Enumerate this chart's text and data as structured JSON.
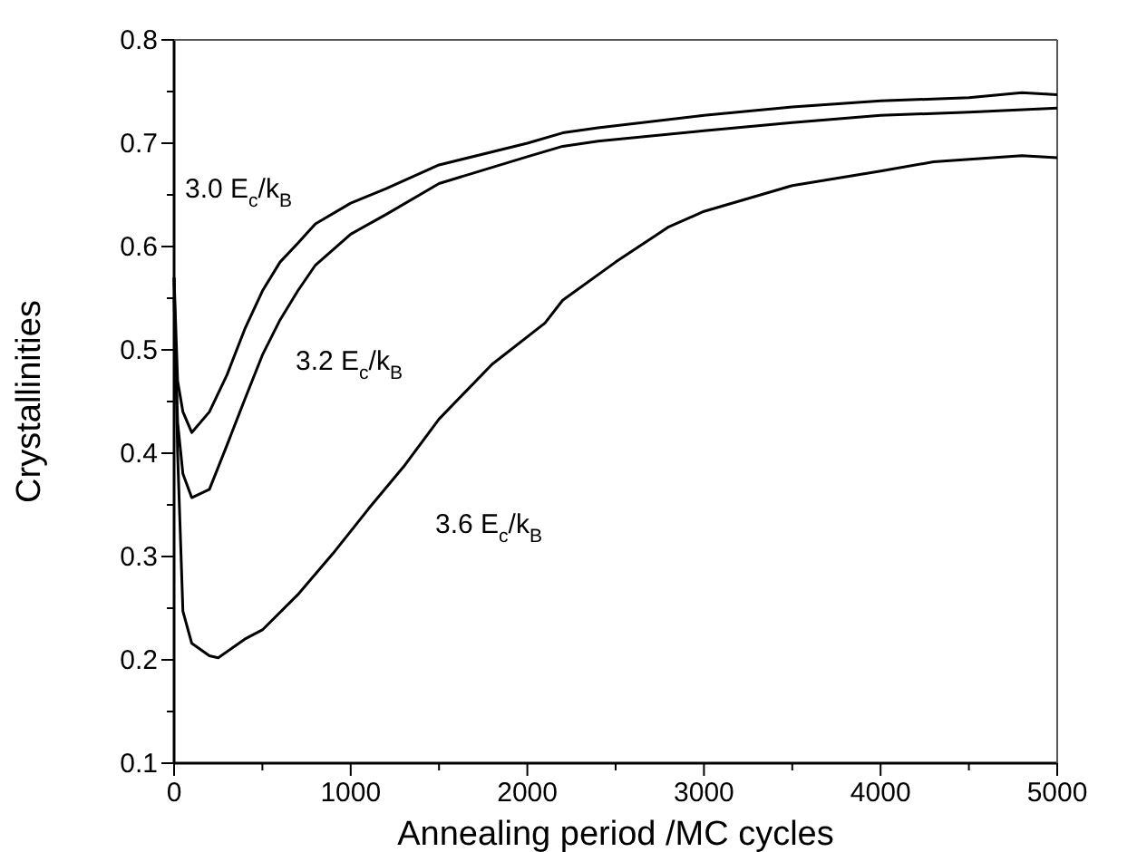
{
  "chart_data": {
    "type": "line",
    "xlabel": "Annealing period /MC cycles",
    "ylabel": "Crystallinities",
    "xlim": [
      0,
      5000
    ],
    "xticks": [
      0,
      {
        "value": 500,
        "label": null
      },
      1000,
      {
        "value": 1500,
        "label": null
      },
      2000,
      {
        "value": 2500,
        "label": null
      },
      3000,
      {
        "value": 3500,
        "label": null
      },
      4000,
      {
        "value": 4500,
        "label": null
      },
      5000
    ],
    "ylim": [
      0.1,
      0.8
    ],
    "yticks": [
      0.1,
      {
        "value": 0.15,
        "label": null
      },
      0.2,
      {
        "value": 0.25,
        "label": null
      },
      0.3,
      {
        "value": 0.35,
        "label": null
      },
      0.4,
      {
        "value": 0.45,
        "label": null
      },
      0.5,
      {
        "value": 0.55,
        "label": null
      },
      0.6,
      {
        "value": 0.65,
        "label": null
      },
      0.7,
      {
        "value": 0.75,
        "label": null
      },
      0.8
    ],
    "grid": false,
    "marker": "none",
    "line_style": "solid",
    "series": [
      {
        "color": "#000000",
        "x": [
          0,
          20,
          50,
          100,
          200,
          300,
          400,
          500,
          600,
          700,
          800,
          1000,
          1200,
          1500,
          2000,
          2200,
          2400,
          3000,
          3500,
          4000,
          4500,
          4800,
          5000
        ],
        "values": [
          0.57,
          0.47,
          0.44,
          0.42,
          0.44,
          0.476,
          0.52,
          0.557,
          0.585,
          0.603,
          0.622,
          0.642,
          0.656,
          0.679,
          0.7,
          0.71,
          0.715,
          0.727,
          0.735,
          0.741,
          0.744,
          0.749,
          0.747
        ]
      },
      {
        "color": "#000000",
        "x": [
          0,
          20,
          50,
          100,
          200,
          300,
          400,
          500,
          600,
          700,
          800,
          1000,
          1200,
          1500,
          2000,
          2200,
          2400,
          3000,
          3500,
          4000,
          4500,
          5000
        ],
        "values": [
          0.55,
          0.43,
          0.38,
          0.357,
          0.365,
          0.408,
          0.452,
          0.495,
          0.529,
          0.557,
          0.582,
          0.612,
          0.631,
          0.661,
          0.687,
          0.697,
          0.702,
          0.712,
          0.72,
          0.727,
          0.73,
          0.734
        ]
      },
      {
        "color": "#000000",
        "x": [
          0,
          20,
          50,
          100,
          200,
          250,
          400,
          500,
          700,
          900,
          1100,
          1300,
          1500,
          1800,
          2100,
          2200,
          2500,
          2800,
          3000,
          3500,
          4000,
          4300,
          4800,
          5000
        ],
        "values": [
          0.57,
          0.4,
          0.247,
          0.216,
          0.204,
          0.202,
          0.22,
          0.229,
          0.263,
          0.303,
          0.346,
          0.387,
          0.433,
          0.486,
          0.526,
          0.548,
          0.585,
          0.619,
          0.634,
          0.659,
          0.673,
          0.682,
          0.688,
          0.686
        ]
      }
    ],
    "annotations": [
      "3.0 E$_{c}$/k$_{B}$",
      "3.2 E$_{c}$/k$_{B}$",
      "3.6 E$_{c}$/k$_{B}$"
    ]
  }
}
